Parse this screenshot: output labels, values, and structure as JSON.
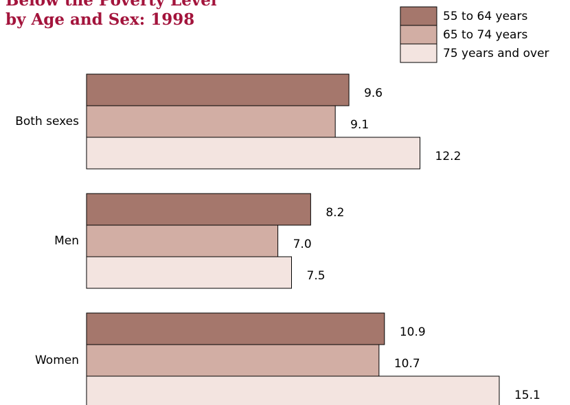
{
  "chart_data": {
    "type": "bar",
    "orientation": "horizontal",
    "title_lines": [
      "Below the Poverty Level",
      "by Age and Sex: 1998"
    ],
    "categories": [
      "Both sexes",
      "Men",
      "Women"
    ],
    "series": [
      {
        "name": "55 to 64 years",
        "color": "#a5776c",
        "values": [
          9.6,
          8.2,
          10.9
        ],
        "value_labels": [
          "9.6",
          "8.2",
          "10.9"
        ]
      },
      {
        "name": "65 to 74 years",
        "color": "#d2aea4",
        "values": [
          9.1,
          7.0,
          10.7
        ],
        "value_labels": [
          "9.1",
          "7.0",
          "10.7"
        ]
      },
      {
        "name": "75 years and over",
        "color": "#f3e4e0",
        "values": [
          12.2,
          7.5,
          15.1
        ],
        "value_labels": [
          "12.2",
          "7.5",
          "15.1"
        ]
      }
    ],
    "legend": "top-right"
  }
}
